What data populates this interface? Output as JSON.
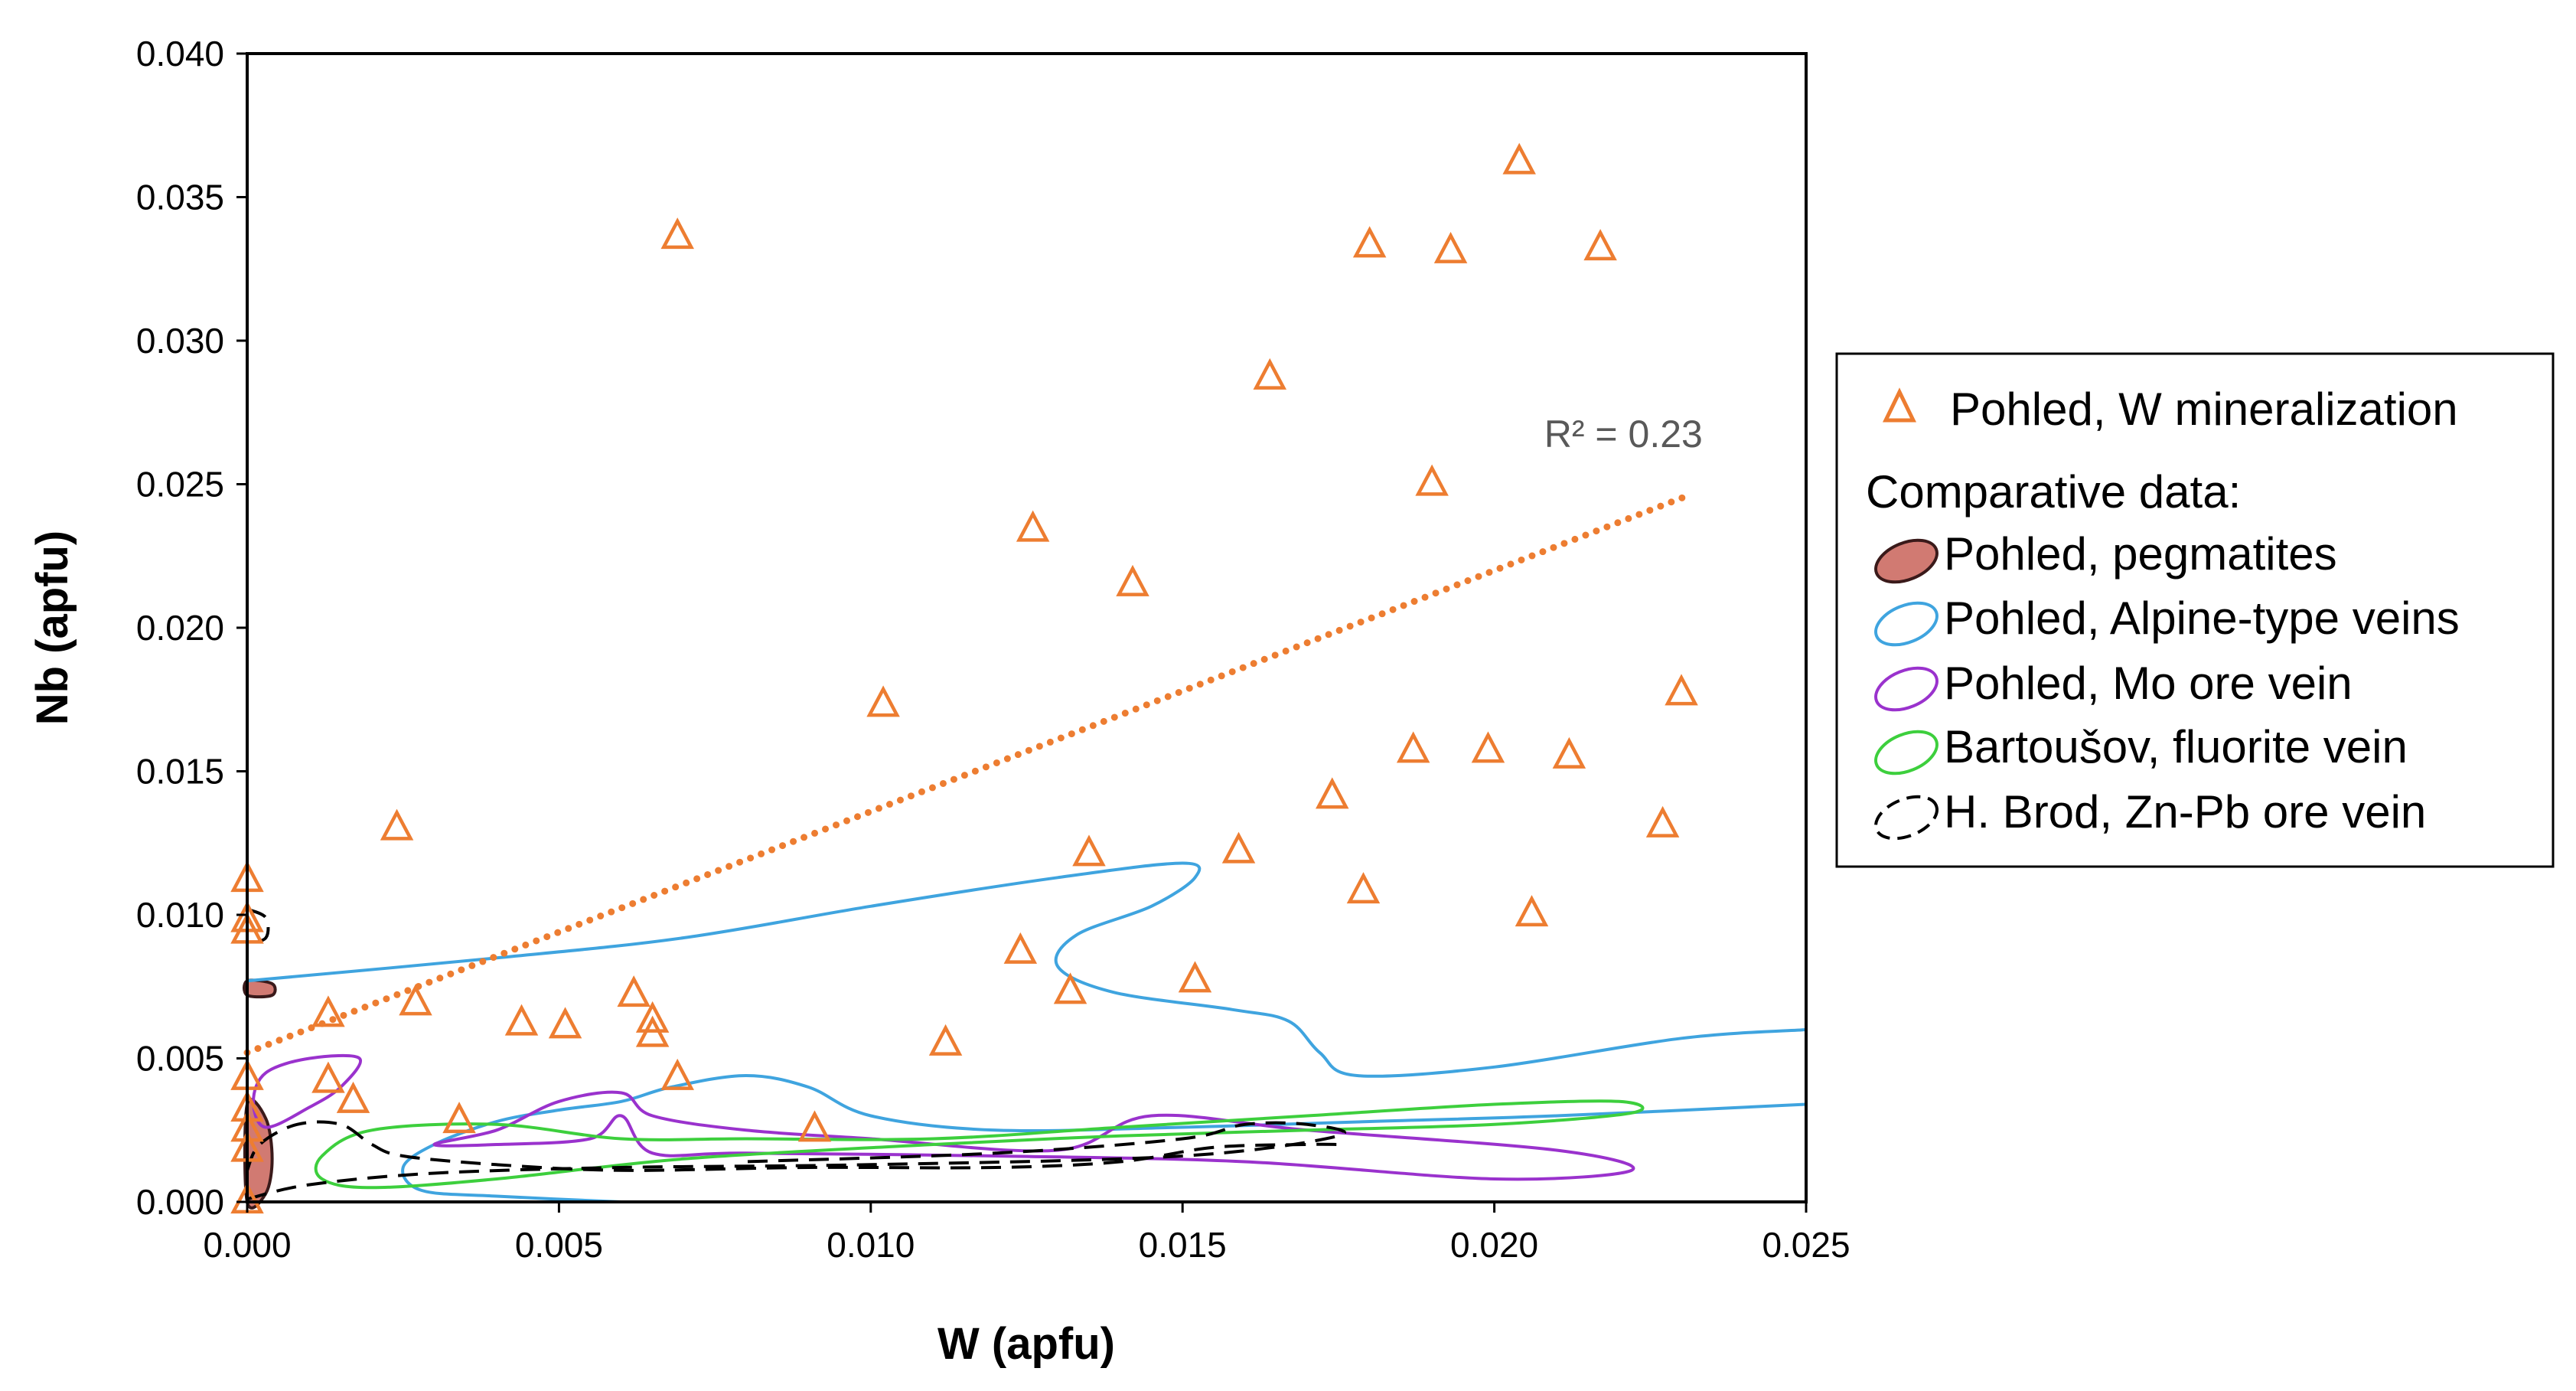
{
  "chart_data": {
    "type": "scatter",
    "title": "",
    "xlabel": "W (apfu)",
    "ylabel": "Nb (apfu)",
    "xlim": [
      0,
      0.025
    ],
    "ylim": [
      0,
      0.04
    ],
    "x_ticks": [
      "0.000",
      "0.005",
      "0.010",
      "0.015",
      "0.020",
      "0.025"
    ],
    "y_ticks": [
      "0.000",
      "0.005",
      "0.010",
      "0.015",
      "0.020",
      "0.025",
      "0.030",
      "0.035",
      "0.040"
    ],
    "grid": false,
    "legend_position": "right",
    "series": [
      {
        "name": "Pohled, W mineralization",
        "marker": "triangle-open",
        "color": "#ED7D31",
        "points": [
          [
            0.0069,
            0.0336
          ],
          [
            0.0204,
            0.0362
          ],
          [
            0.018,
            0.0333
          ],
          [
            0.0193,
            0.0331
          ],
          [
            0.0217,
            0.0332
          ],
          [
            0.0164,
            0.0287
          ],
          [
            0.019,
            0.025
          ],
          [
            0.0126,
            0.0234
          ],
          [
            0.0142,
            0.0215
          ],
          [
            0.0102,
            0.0173
          ],
          [
            0.023,
            0.0177
          ],
          [
            0.0187,
            0.0157
          ],
          [
            0.0199,
            0.0157
          ],
          [
            0.0212,
            0.0155
          ],
          [
            0.0174,
            0.0141
          ],
          [
            0.0227,
            0.0131
          ],
          [
            0.0024,
            0.013
          ],
          [
            0.0135,
            0.0121
          ],
          [
            0.0159,
            0.0122
          ],
          [
            0.0179,
            0.0108
          ],
          [
            0.0206,
            0.01
          ],
          [
            0.0124,
            0.0087
          ],
          [
            0.0132,
            0.0073
          ],
          [
            0.0152,
            0.0077
          ],
          [
            0.0027,
            0.0069
          ],
          [
            0.0013,
            0.0065
          ],
          [
            0.0044,
            0.0062
          ],
          [
            0.0051,
            0.0061
          ],
          [
            0.0062,
            0.0072
          ],
          [
            0.0065,
            0.0063
          ],
          [
            0.0065,
            0.0058
          ],
          [
            0.0069,
            0.0043
          ],
          [
            0.0112,
            0.0055
          ],
          [
            0.0013,
            0.0042
          ],
          [
            0.0017,
            0.0035
          ],
          [
            0.0034,
            0.0028
          ],
          [
            0.0091,
            0.0025
          ],
          [
            0.0,
            0.0112
          ],
          [
            0.0,
            0.0098
          ],
          [
            0.0,
            0.0094
          ],
          [
            0.0,
            0.0043
          ],
          [
            0.0,
            0.0032
          ],
          [
            0.0,
            0.0025
          ],
          [
            0.0,
            0.0018
          ],
          [
            0.0,
            0.0
          ]
        ]
      },
      {
        "name": "Pohled, pegmatites",
        "type": "filled-field",
        "fill": "#D17A72",
        "stroke": "#3a1a1a",
        "fields": [
          [
            [
              0.0,
              0.0077
            ],
            [
              0.0004,
              0.0076
            ],
            [
              0.0004,
              0.0072
            ],
            [
              0.0,
              0.0072
            ]
          ],
          [
            [
              0.0,
              0.0034
            ],
            [
              0.0003,
              0.0029
            ],
            [
              0.0004,
              0.0015
            ],
            [
              0.0003,
              0.0003
            ],
            [
              0.0,
              0.0
            ]
          ]
        ]
      },
      {
        "name": "Pohled, Alpine-type veins",
        "type": "field",
        "stroke": "#3FA4DF",
        "fields": [
          [
            [
              0.0,
              0.0077
            ],
            [
              0.004,
              0.0085
            ],
            [
              0.007,
              0.0092
            ],
            [
              0.01,
              0.0103
            ],
            [
              0.013,
              0.0113
            ],
            [
              0.015,
              0.0118
            ],
            [
              0.0152,
              0.0113
            ],
            [
              0.0145,
              0.0103
            ],
            [
              0.0133,
              0.0093
            ],
            [
              0.013,
              0.0082
            ],
            [
              0.0139,
              0.0073
            ],
            [
              0.0158,
              0.0067
            ],
            [
              0.0167,
              0.0063
            ],
            [
              0.0172,
              0.0052
            ],
            [
              0.0178,
              0.0044
            ],
            [
              0.02,
              0.0047
            ],
            [
              0.023,
              0.0057
            ],
            [
              0.025,
              0.006
            ]
          ],
          [
            [
              0.025,
              0.0034
            ],
            [
              0.021,
              0.003
            ],
            [
              0.018,
              0.0028
            ],
            [
              0.015,
              0.0026
            ],
            [
              0.012,
              0.0025
            ],
            [
              0.01,
              0.003
            ],
            [
              0.009,
              0.004
            ],
            [
              0.008,
              0.0044
            ],
            [
              0.0068,
              0.004
            ],
            [
              0.006,
              0.0035
            ],
            [
              0.005,
              0.0032
            ],
            [
              0.004,
              0.0028
            ],
            [
              0.003,
              0.002
            ],
            [
              0.0025,
              0.0012
            ],
            [
              0.0028,
              0.0004
            ],
            [
              0.004,
              0.0002
            ],
            [
              0.006,
              0.0
            ]
          ]
        ]
      },
      {
        "name": "Pohled, Mo ore vein",
        "type": "field",
        "stroke": "#9A32CD",
        "fields": [
          [
            [
              0.0003,
              0.0045
            ],
            [
              0.001,
              0.005
            ],
            [
              0.0018,
              0.005
            ],
            [
              0.0015,
              0.004
            ],
            [
              0.001,
              0.0033
            ],
            [
              0.0003,
              0.0026
            ],
            [
              0.0001,
              0.0035
            ],
            [
              0.0003,
              0.0045
            ]
          ],
          [
            [
              0.003,
              0.002
            ],
            [
              0.004,
              0.0025
            ],
            [
              0.005,
              0.0035
            ],
            [
              0.006,
              0.0038
            ],
            [
              0.0065,
              0.003
            ],
            [
              0.008,
              0.0025
            ],
            [
              0.01,
              0.0022
            ],
            [
              0.013,
              0.0018
            ],
            [
              0.0145,
              0.003
            ],
            [
              0.017,
              0.0025
            ],
            [
              0.021,
              0.0018
            ],
            [
              0.0222,
              0.0011
            ],
            [
              0.02,
              0.0008
            ],
            [
              0.016,
              0.0014
            ],
            [
              0.012,
              0.0016
            ],
            [
              0.008,
              0.0017
            ],
            [
              0.0065,
              0.0017
            ],
            [
              0.006,
              0.003
            ],
            [
              0.0055,
              0.0022
            ],
            [
              0.004,
              0.002
            ],
            [
              0.003,
              0.002
            ]
          ]
        ]
      },
      {
        "name": "Bartoušov, fluorite vein",
        "type": "field",
        "stroke": "#3DCF3D",
        "fields": [
          [
            [
              0.0012,
              0.0016
            ],
            [
              0.002,
              0.0025
            ],
            [
              0.004,
              0.0027
            ],
            [
              0.006,
              0.0022
            ],
            [
              0.008,
              0.0022
            ],
            [
              0.011,
              0.0022
            ],
            [
              0.014,
              0.0026
            ],
            [
              0.017,
              0.003
            ],
            [
              0.02,
              0.0034
            ],
            [
              0.022,
              0.0035
            ],
            [
              0.0222,
              0.0031
            ],
            [
              0.02,
              0.0027
            ],
            [
              0.017,
              0.0025
            ],
            [
              0.014,
              0.0023
            ],
            [
              0.011,
              0.002
            ],
            [
              0.007,
              0.0015
            ],
            [
              0.004,
              0.0008
            ],
            [
              0.002,
              0.0005
            ],
            [
              0.0012,
              0.0008
            ],
            [
              0.0012,
              0.0016
            ]
          ]
        ]
      },
      {
        "name": "H. Brod, Zn-Pb ore vein",
        "type": "field",
        "stroke": "#000000",
        "dash": true,
        "fields": [
          [
            [
              0.0,
              0.0011
            ],
            [
              0.0002,
              0.002
            ],
            [
              0.0008,
              0.0027
            ],
            [
              0.0015,
              0.0027
            ],
            [
              0.002,
              0.002
            ],
            [
              0.0025,
              0.0016
            ],
            [
              0.004,
              0.0013
            ],
            [
              0.006,
              0.0011
            ],
            [
              0.009,
              0.0012
            ],
            [
              0.012,
              0.0012
            ],
            [
              0.014,
              0.0014
            ],
            [
              0.0155,
              0.0019
            ],
            [
              0.017,
              0.002
            ],
            [
              0.0175,
              0.002
            ]
          ],
          [
            [
              0.0,
              0.0001
            ],
            [
              0.001,
              0.0006
            ],
            [
              0.003,
              0.001
            ],
            [
              0.006,
              0.0012
            ],
            [
              0.01,
              0.0013
            ],
            [
              0.015,
              0.0016
            ],
            [
              0.0175,
              0.0023
            ],
            [
              0.017,
              0.0027
            ],
            [
              0.016,
              0.0027
            ],
            [
              0.015,
              0.0022
            ],
            [
              0.012,
              0.0017
            ],
            [
              0.008,
              0.0014
            ]
          ],
          [
            [
              0.0,
              0.0102
            ],
            [
              0.0003,
              0.0099
            ],
            [
              0.0003,
              0.0092
            ],
            [
              0.0,
              0.009
            ]
          ]
        ]
      }
    ],
    "trendline": {
      "series": "Pohled, W mineralization",
      "style": "dotted",
      "color": "#ED7D31",
      "start": [
        0.0,
        0.0052
      ],
      "end": [
        0.0231,
        0.0246
      ],
      "label": "R² = 0.23",
      "label_anchor": [
        0.0208,
        0.0263
      ]
    },
    "legend": {
      "entries": [
        {
          "text": "Pohled, W mineralization",
          "symbol": "triangle-icon"
        },
        {
          "text": "Comparative data:",
          "symbol": ""
        },
        {
          "text": "Pohled, pegmatites",
          "symbol": "filled-ellipse-icon"
        },
        {
          "text": "Pohled, Alpine-type veins",
          "symbol": "blue-ellipse-icon"
        },
        {
          "text": "Pohled, Mo ore vein",
          "symbol": "purple-ellipse-icon"
        },
        {
          "text": "Bartoušov, fluorite vein",
          "symbol": "green-ellipse-icon"
        },
        {
          "text": "H. Brod, Zn-Pb ore vein",
          "symbol": "dashed-ellipse-icon"
        }
      ]
    }
  }
}
